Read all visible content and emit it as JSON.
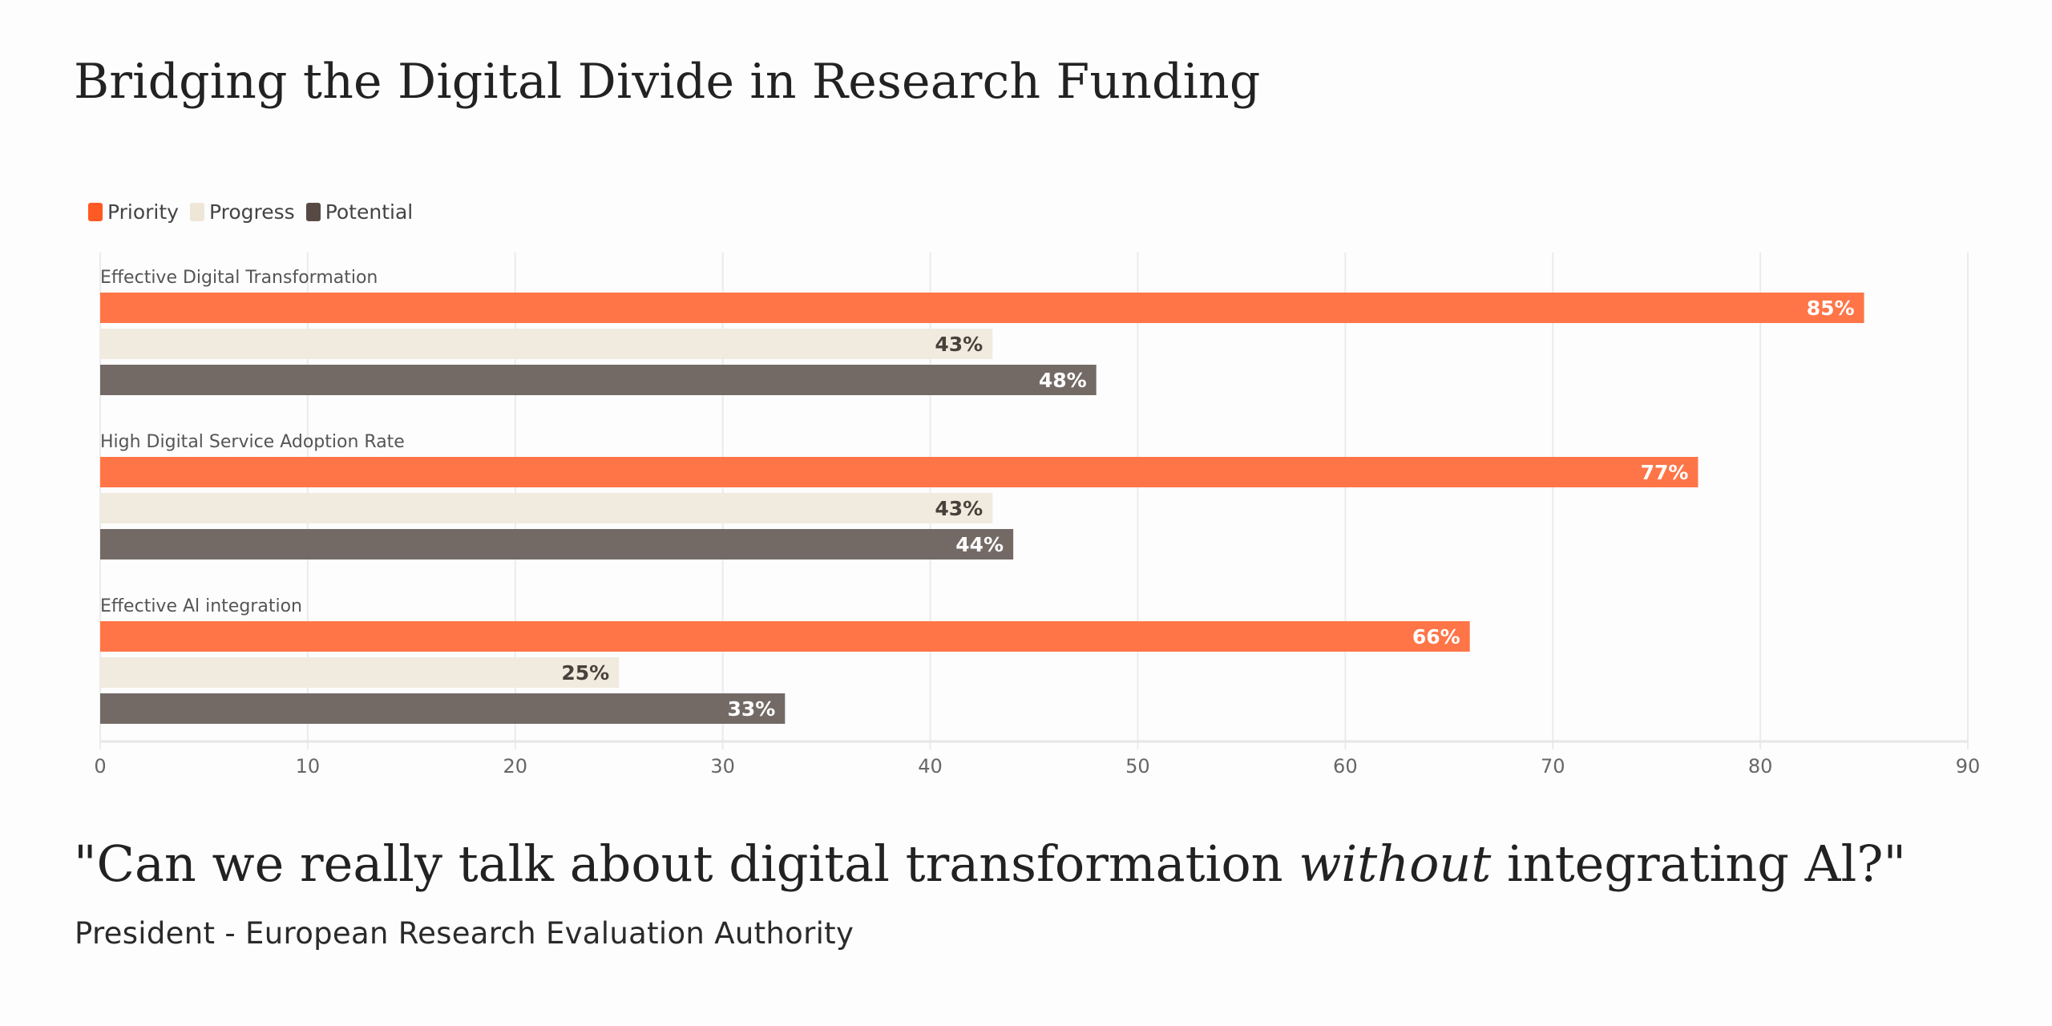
{
  "header": {
    "title": "Bridging the Digital Divide in Research Funding"
  },
  "legend": {
    "items": [
      {
        "label": "Priority",
        "color": "#FF5A24"
      },
      {
        "label": "Progress",
        "color": "#EEE7D8"
      },
      {
        "label": "Potential",
        "color": "#574A45"
      }
    ]
  },
  "chart_data": {
    "type": "bar",
    "orientation": "horizontal",
    "title": "Bridging the Digital Divide in Research Funding",
    "xlabel": "",
    "ylabel": "",
    "xlim": [
      0,
      90
    ],
    "x_ticks": [
      "0",
      "10",
      "20",
      "30",
      "40",
      "50",
      "60",
      "70",
      "80",
      "90"
    ],
    "grid": true,
    "legend_position": "top-left",
    "value_suffix": "%",
    "categories": [
      "Effective Digital Transformation",
      "High Digital Service Adoption Rate",
      "Effective Al integration"
    ],
    "series": [
      {
        "name": "Priority",
        "values": [
          85,
          77,
          66
        ],
        "bar_color": "#FF7548",
        "label_color": "#FFFFFF"
      },
      {
        "name": "Progress",
        "values": [
          43,
          43,
          25
        ],
        "bar_color": "#F1EBDF",
        "label_color": "#4A403B"
      },
      {
        "name": "Potential",
        "values": [
          48,
          44,
          33
        ],
        "bar_color": "#736A66",
        "label_color": "#FFFFFF"
      }
    ]
  },
  "footer": {
    "quote_before": "\"Can we really talk about digital transformation ",
    "quote_emphasis": "without",
    "quote_after": " integrating Al?\"",
    "attribution": "President - European Research Evaluation Authority"
  }
}
